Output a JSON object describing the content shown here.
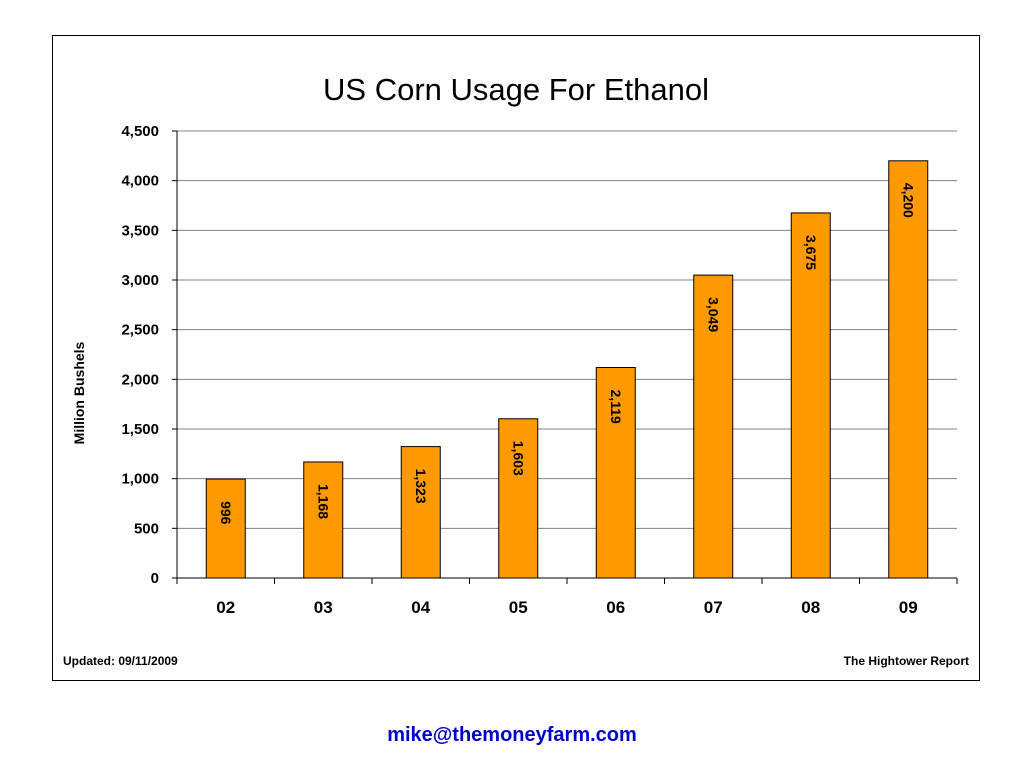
{
  "chart_data": {
    "type": "bar",
    "title": "US Corn Usage For Ethanol",
    "xlabel": "",
    "ylabel": "Million Bushels",
    "categories": [
      "02",
      "03",
      "04",
      "05",
      "06",
      "07",
      "08",
      "09"
    ],
    "values": [
      996,
      1168,
      1323,
      1603,
      2119,
      3049,
      3675,
      4200
    ],
    "data_labels": [
      "996",
      "1,168",
      "1,323",
      "1,603",
      "2,119",
      "3,049",
      "3,675",
      "4,200"
    ],
    "ylim": [
      0,
      4500
    ],
    "yticks": [
      0,
      500,
      1000,
      1500,
      2000,
      2500,
      3000,
      3500,
      4000,
      4500
    ],
    "ytick_labels": [
      "0",
      "500",
      "1,000",
      "1,500",
      "2,000",
      "2,500",
      "3,000",
      "3,500",
      "4,000",
      "4,500"
    ],
    "grid": true,
    "legend": "none",
    "bar_color": "#ff9900",
    "bar_edge_color": "#000000",
    "grid_color": "#808080"
  },
  "footer": {
    "updated": "Updated: 09/11/2009",
    "source": "The Hightower Report"
  },
  "contact": {
    "email": "mike@themoneyfarm.com",
    "color": "#0000cc"
  }
}
